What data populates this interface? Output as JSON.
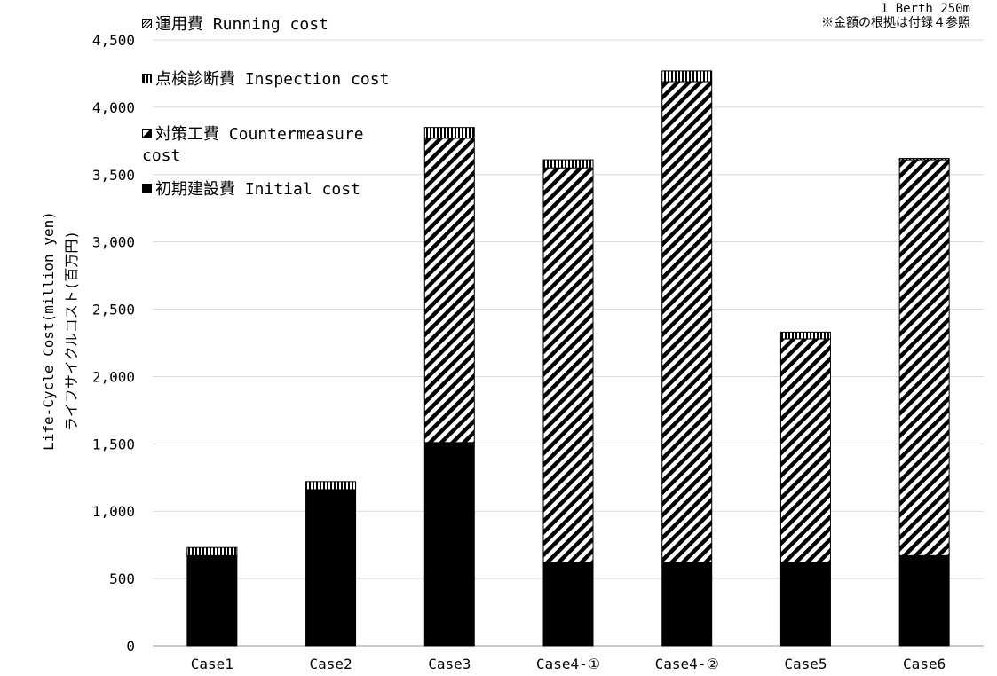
{
  "chart_data": {
    "type": "bar",
    "stacked": true,
    "categories": [
      "Case1",
      "Case2",
      "Case3",
      "Case4-①",
      "Case4-②",
      "Case5",
      "Case6"
    ],
    "series": [
      {
        "name": "初期建設費 Initial cost",
        "values": [
          670,
          1160,
          1510,
          620,
          620,
          620,
          670
        ]
      },
      {
        "name": "対策工費 Countermeasure cost",
        "values": [
          0,
          0,
          2260,
          2930,
          3570,
          1660,
          2940
        ]
      },
      {
        "name": "点検診断費 Inspection cost",
        "values": [
          60,
          60,
          80,
          60,
          80,
          50,
          10
        ]
      },
      {
        "name": "運用費 Running cost",
        "values": [
          0,
          0,
          0,
          0,
          0,
          0,
          0
        ]
      }
    ],
    "ylabel": [
      "Life-Cycle Cost(million yen)",
      "ライフサイクルコスト(百万円)"
    ],
    "ylim": [
      0,
      4500
    ],
    "yticks": [
      "0",
      "500",
      "1,000",
      "1,500",
      "2,000",
      "2,500",
      "3,000",
      "3,500",
      "4,000",
      "4,500"
    ],
    "grid": true,
    "legend_position": "top-left",
    "annotation": [
      "1 Berth 250m",
      "※金額の根拠は付録４参照"
    ]
  },
  "legend_order": [
    3,
    2,
    1,
    0
  ]
}
